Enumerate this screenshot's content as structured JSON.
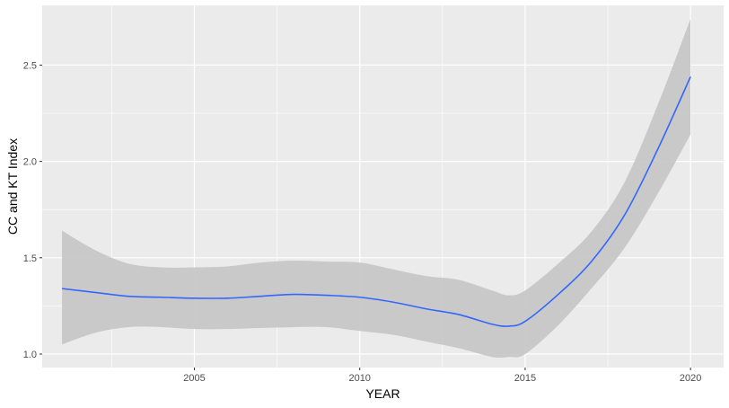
{
  "chart_data": {
    "type": "line",
    "title": "",
    "xlabel": "YEAR",
    "ylabel": "CC and KT Index",
    "xlim": [
      2000.4,
      2021.0
    ],
    "ylim": [
      0.93,
      2.81
    ],
    "x_ticks": [
      2005,
      2010,
      2015,
      2020
    ],
    "x_ticks_minor": [
      2002.5,
      2007.5,
      2012.5,
      2017.5
    ],
    "y_ticks": [
      1.0,
      1.5,
      2.0,
      2.5
    ],
    "y_ticks_minor": [
      1.25,
      1.75,
      2.25
    ],
    "grid": true,
    "legend": "none",
    "colors": {
      "panel": "#ebebeb",
      "grid": "#ffffff",
      "line": "#3366ff",
      "ribbon": "#c7c7c7"
    },
    "series": [
      {
        "style": "smooth-with-confidence-band",
        "x": [
          2001,
          2002,
          2003,
          2004,
          2005,
          2006,
          2007,
          2008,
          2009,
          2010,
          2011,
          2012,
          2013,
          2014,
          2014.5,
          2015,
          2016,
          2017,
          2018,
          2019,
          2020
        ],
        "y": [
          1.34,
          1.32,
          1.3,
          1.295,
          1.29,
          1.29,
          1.3,
          1.31,
          1.305,
          1.295,
          1.27,
          1.235,
          1.205,
          1.155,
          1.145,
          1.17,
          1.31,
          1.48,
          1.72,
          2.06,
          2.44
        ],
        "lower": [
          1.05,
          1.11,
          1.14,
          1.14,
          1.13,
          1.13,
          1.135,
          1.14,
          1.14,
          1.12,
          1.1,
          1.065,
          1.03,
          0.985,
          0.985,
          1.0,
          1.15,
          1.34,
          1.55,
          1.83,
          2.14
        ],
        "upper": [
          1.64,
          1.54,
          1.47,
          1.45,
          1.45,
          1.455,
          1.475,
          1.485,
          1.48,
          1.475,
          1.44,
          1.405,
          1.385,
          1.33,
          1.305,
          1.33,
          1.47,
          1.635,
          1.89,
          2.29,
          2.74
        ]
      }
    ]
  }
}
